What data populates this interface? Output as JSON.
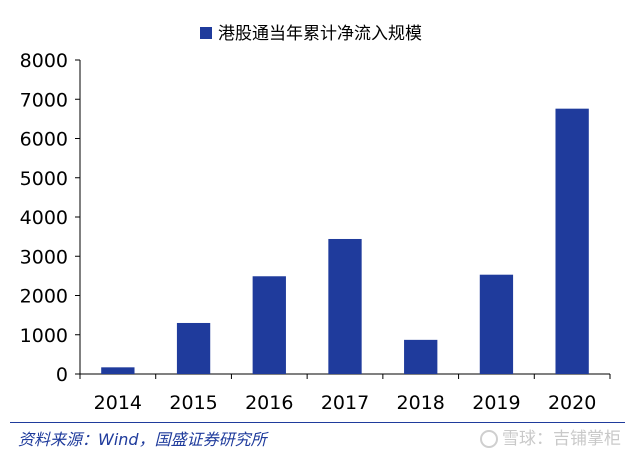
{
  "chart_data": {
    "type": "bar",
    "title": "",
    "legend": [
      "港股通当年累计净流入规模"
    ],
    "legend_position": "top-center",
    "categories": [
      "2014",
      "2015",
      "2016",
      "2017",
      "2018",
      "2019",
      "2020"
    ],
    "series": [
      {
        "name": "港股通当年累计净流入规模",
        "values": [
          170,
          1300,
          2490,
          3440,
          870,
          2530,
          6760
        ],
        "color": "#1f3b9c"
      }
    ],
    "ylim": [
      0,
      8000
    ],
    "yticks": [
      "0",
      "1000",
      "2000",
      "3000",
      "4000",
      "5000",
      "6000",
      "7000",
      "8000"
    ],
    "xlabel": "",
    "ylabel": "",
    "grid": false
  },
  "footer": {
    "source": "资料来源：Wind，国盛证券研究所",
    "watermark": "雪球：吉铺掌柜"
  },
  "colors": {
    "bar": "#1f3b9c",
    "source_text": "#1f3b9c",
    "axis": "#000000"
  }
}
